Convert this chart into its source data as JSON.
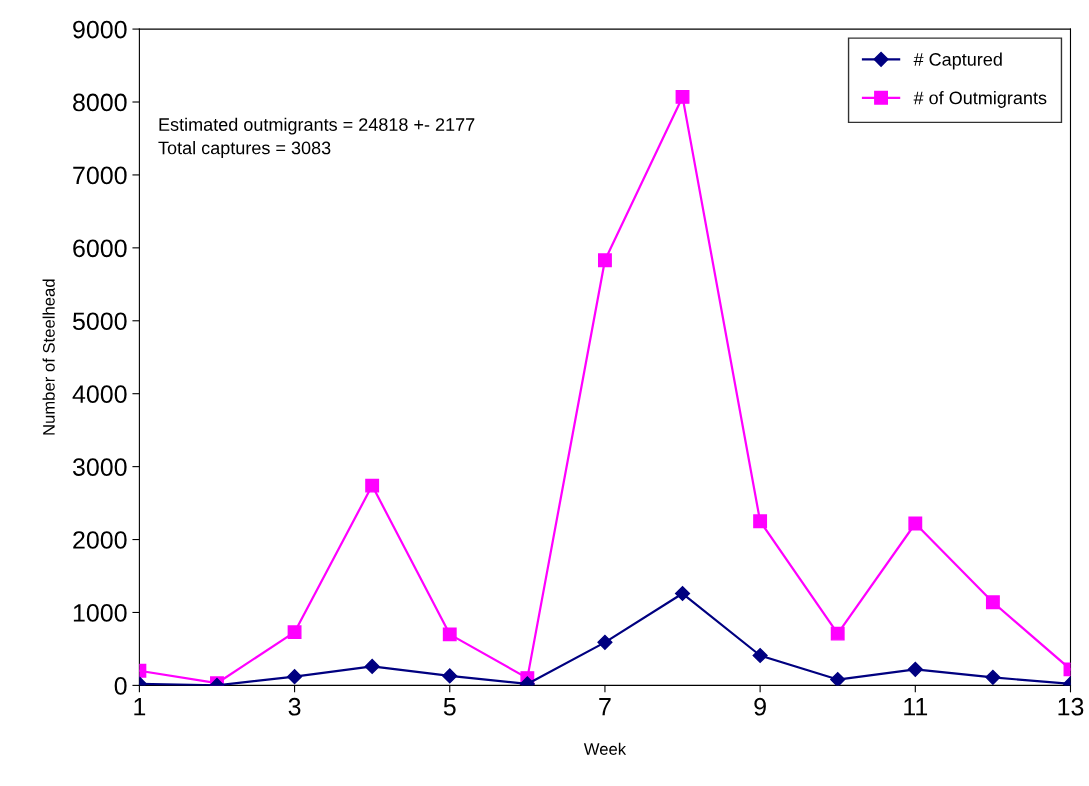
{
  "chart_data": {
    "type": "line",
    "xlabel": "Week",
    "ylabel": "Number of Steelhead",
    "x": [
      1,
      2,
      3,
      4,
      5,
      6,
      7,
      8,
      9,
      10,
      11,
      12,
      13
    ],
    "series": [
      {
        "name": "# Captured",
        "color": "#000080",
        "marker": "diamond",
        "values": [
          20,
          0,
          120,
          260,
          130,
          20,
          590,
          1260,
          410,
          80,
          220,
          110,
          20
        ]
      },
      {
        "name": "# of Outmigrants",
        "color": "#ff00ff",
        "marker": "square",
        "values": [
          200,
          30,
          730,
          2740,
          700,
          100,
          5830,
          8070,
          2250,
          710,
          2220,
          1140,
          220
        ]
      }
    ],
    "xlim": [
      1,
      13
    ],
    "xticks": [
      1,
      3,
      5,
      7,
      9,
      11,
      13
    ],
    "ylim": [
      0,
      9000
    ],
    "yticks": [
      0,
      1000,
      2000,
      3000,
      4000,
      5000,
      6000,
      7000,
      8000,
      9000
    ],
    "grid": false,
    "legend": "top right",
    "line_style": "solid",
    "annotations": [
      "Estimated outmigrants = 24818 +- 2177\nTotal captures = 3083"
    ]
  }
}
